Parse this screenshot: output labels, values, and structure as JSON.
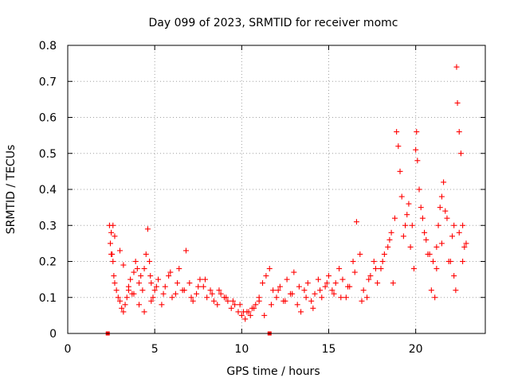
{
  "chart_data": {
    "type": "scatter",
    "title": "Day 099 of 2023, SRMTID for receiver momc",
    "xlabel": "GPS time / hours",
    "ylabel": "SRMTID / TECUs",
    "xlim": [
      0,
      24
    ],
    "ylim": [
      0,
      0.8
    ],
    "xticks": [
      "0",
      "5",
      "10",
      "15",
      "20"
    ],
    "yticks": [
      "0",
      "0.1",
      "0.2",
      "0.3",
      "0.4",
      "0.5",
      "0.6",
      "0.7",
      "0.8"
    ],
    "grid": true,
    "marker": "plus",
    "color": "#ff0000",
    "series": [
      {
        "name": "SRMTID",
        "x": [
          2.4,
          2.45,
          2.5,
          2.55,
          2.6,
          2.65,
          2.7,
          2.8,
          2.9,
          3.0,
          3.1,
          3.2,
          3.3,
          3.4,
          3.5,
          3.6,
          3.7,
          3.8,
          3.9,
          4.0,
          4.1,
          4.2,
          4.3,
          4.4,
          4.5,
          4.6,
          4.7,
          4.75,
          4.8,
          4.9,
          5.0,
          5.2,
          5.4,
          5.6,
          5.8,
          6.0,
          6.2,
          6.4,
          6.6,
          6.8,
          7.0,
          7.2,
          7.4,
          7.6,
          7.8,
          8.0,
          8.2,
          8.4,
          8.6,
          8.8,
          9.0,
          9.2,
          9.4,
          9.6,
          9.8,
          10.0,
          10.2,
          10.4,
          10.6,
          10.8,
          11.0,
          11.2,
          11.4,
          11.6,
          11.8,
          12.0,
          12.2,
          12.4,
          12.6,
          12.8,
          13.0,
          13.2,
          13.4,
          13.6,
          13.8,
          14.0,
          14.2,
          14.4,
          14.6,
          14.8,
          15.0,
          15.2,
          15.4,
          15.6,
          15.8,
          16.0,
          16.2,
          16.4,
          16.6,
          16.8,
          17.0,
          17.2,
          17.4,
          17.6,
          17.8,
          18.0,
          18.2,
          18.4,
          18.6,
          18.8,
          18.9,
          19.0,
          19.1,
          19.2,
          19.4,
          19.6,
          19.8,
          20.0,
          20.05,
          20.1,
          20.2,
          20.4,
          20.6,
          20.8,
          21.0,
          21.1,
          21.2,
          21.3,
          21.4,
          21.5,
          21.6,
          21.8,
          22.0,
          22.1,
          22.2,
          22.3,
          22.35,
          22.4,
          22.5,
          22.6,
          22.7,
          22.8,
          2.5,
          2.6,
          2.7,
          3.0,
          3.2,
          3.5,
          3.8,
          4.1,
          4.4,
          4.8,
          5.1,
          5.5,
          5.9,
          6.3,
          6.7,
          7.1,
          7.5,
          7.9,
          8.3,
          8.7,
          9.1,
          9.5,
          9.9,
          10.1,
          10.3,
          10.5,
          10.7,
          11.0,
          11.3,
          11.7,
          12.1,
          12.5,
          12.9,
          13.3,
          13.7,
          14.1,
          14.5,
          14.9,
          15.3,
          15.7,
          16.1,
          16.5,
          16.9,
          17.3,
          17.7,
          18.1,
          18.5,
          18.7,
          19.3,
          19.5,
          19.7,
          19.9,
          20.3,
          20.5,
          20.7,
          20.9,
          21.2,
          21.5,
          21.7,
          21.9,
          22.2,
          22.5,
          22.7,
          22.9
        ],
        "y": [
          0.3,
          0.25,
          0.28,
          0.22,
          0.2,
          0.16,
          0.14,
          0.12,
          0.1,
          0.09,
          0.07,
          0.06,
          0.08,
          0.1,
          0.12,
          0.15,
          0.11,
          0.17,
          0.2,
          0.18,
          0.14,
          0.16,
          0.12,
          0.18,
          0.22,
          0.29,
          0.2,
          0.16,
          0.14,
          0.1,
          0.12,
          0.15,
          0.08,
          0.13,
          0.16,
          0.1,
          0.11,
          0.18,
          0.12,
          0.23,
          0.14,
          0.09,
          0.11,
          0.15,
          0.13,
          0.1,
          0.12,
          0.09,
          0.08,
          0.11,
          0.1,
          0.09,
          0.07,
          0.08,
          0.06,
          0.05,
          0.04,
          0.06,
          0.07,
          0.08,
          0.1,
          0.14,
          0.16,
          0.18,
          0.12,
          0.1,
          0.13,
          0.09,
          0.15,
          0.11,
          0.17,
          0.08,
          0.06,
          0.12,
          0.14,
          0.09,
          0.11,
          0.15,
          0.1,
          0.13,
          0.16,
          0.12,
          0.14,
          0.18,
          0.15,
          0.1,
          0.13,
          0.2,
          0.31,
          0.22,
          0.12,
          0.1,
          0.16,
          0.2,
          0.14,
          0.18,
          0.22,
          0.24,
          0.28,
          0.32,
          0.56,
          0.52,
          0.45,
          0.38,
          0.3,
          0.36,
          0.3,
          0.51,
          0.56,
          0.48,
          0.4,
          0.32,
          0.26,
          0.22,
          0.2,
          0.1,
          0.24,
          0.3,
          0.35,
          0.38,
          0.42,
          0.32,
          0.2,
          0.27,
          0.3,
          0.12,
          0.74,
          0.64,
          0.56,
          0.5,
          0.3,
          0.24,
          0.22,
          0.3,
          0.27,
          0.23,
          0.19,
          0.13,
          0.11,
          0.08,
          0.06,
          0.09,
          0.13,
          0.11,
          0.17,
          0.14,
          0.12,
          0.1,
          0.13,
          0.15,
          0.11,
          0.12,
          0.1,
          0.09,
          0.08,
          0.06,
          0.06,
          0.05,
          0.07,
          0.09,
          0.05,
          0.08,
          0.12,
          0.09,
          0.11,
          0.13,
          0.1,
          0.07,
          0.12,
          0.14,
          0.11,
          0.1,
          0.13,
          0.17,
          0.09,
          0.15,
          0.18,
          0.2,
          0.26,
          0.14,
          0.27,
          0.33,
          0.24,
          0.18,
          0.35,
          0.28,
          0.22,
          0.12,
          0.18,
          0.25,
          0.34,
          0.2,
          0.16,
          0.28,
          0.2,
          0.25
        ]
      }
    ],
    "data_gap_markers_x": [
      2.3,
      11.6
    ]
  }
}
